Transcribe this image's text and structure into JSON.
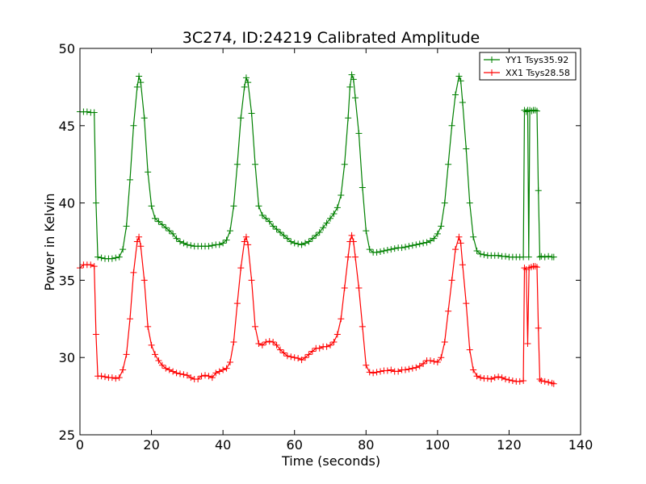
{
  "chart_data": {
    "type": "line",
    "title": "3C274, ID:24219 Calibrated Amplitude",
    "xlabel": "Time (seconds)",
    "ylabel": "Power in Kelvin",
    "xlim": [
      0,
      140
    ],
    "ylim": [
      25,
      50
    ],
    "xticks": [
      0,
      20,
      40,
      60,
      80,
      100,
      120,
      140
    ],
    "yticks": [
      25,
      30,
      35,
      40,
      45,
      50
    ],
    "xtick_labels": [
      "0",
      "20",
      "40",
      "60",
      "80",
      "100",
      "120",
      "140"
    ],
    "ytick_labels": [
      "25",
      "30",
      "35",
      "40",
      "45",
      "50"
    ],
    "grid": false,
    "legend_position": "top-right",
    "marker": "+",
    "series": [
      {
        "name": "YY1 Tsys35.92",
        "color": "#008000",
        "points": [
          [
            0,
            45.9
          ],
          [
            1,
            45.9
          ],
          [
            2,
            45.9
          ],
          [
            3,
            45.85
          ],
          [
            4,
            45.85
          ],
          [
            4.5,
            40.0
          ],
          [
            5,
            36.5
          ],
          [
            6,
            36.45
          ],
          [
            7,
            36.4
          ],
          [
            8,
            36.4
          ],
          [
            9,
            36.4
          ],
          [
            10,
            36.45
          ],
          [
            11,
            36.5
          ],
          [
            12,
            37.0
          ],
          [
            13,
            38.5
          ],
          [
            14,
            41.5
          ],
          [
            15,
            45.0
          ],
          [
            16,
            47.5
          ],
          [
            16.5,
            48.2
          ],
          [
            17,
            47.8
          ],
          [
            18,
            45.5
          ],
          [
            19,
            42.0
          ],
          [
            20,
            39.8
          ],
          [
            21,
            39.0
          ],
          [
            22,
            38.8
          ],
          [
            23,
            38.6
          ],
          [
            24,
            38.4
          ],
          [
            25,
            38.2
          ],
          [
            26,
            38.0
          ],
          [
            27,
            37.7
          ],
          [
            28,
            37.5
          ],
          [
            29,
            37.4
          ],
          [
            30,
            37.3
          ],
          [
            31,
            37.25
          ],
          [
            32,
            37.2
          ],
          [
            33,
            37.2
          ],
          [
            34,
            37.2
          ],
          [
            35,
            37.2
          ],
          [
            36,
            37.2
          ],
          [
            37,
            37.25
          ],
          [
            38,
            37.3
          ],
          [
            39,
            37.3
          ],
          [
            40,
            37.4
          ],
          [
            41,
            37.6
          ],
          [
            42,
            38.2
          ],
          [
            43,
            39.8
          ],
          [
            44,
            42.5
          ],
          [
            45,
            45.5
          ],
          [
            46,
            47.5
          ],
          [
            46.5,
            48.1
          ],
          [
            47,
            47.8
          ],
          [
            48,
            45.8
          ],
          [
            49,
            42.5
          ],
          [
            50,
            39.8
          ],
          [
            51,
            39.2
          ],
          [
            52,
            39.0
          ],
          [
            53,
            38.8
          ],
          [
            54,
            38.5
          ],
          [
            55,
            38.3
          ],
          [
            56,
            38.1
          ],
          [
            57,
            37.9
          ],
          [
            58,
            37.7
          ],
          [
            59,
            37.5
          ],
          [
            60,
            37.4
          ],
          [
            61,
            37.35
          ],
          [
            62,
            37.3
          ],
          [
            63,
            37.4
          ],
          [
            64,
            37.5
          ],
          [
            65,
            37.7
          ],
          [
            66,
            37.9
          ],
          [
            67,
            38.1
          ],
          [
            68,
            38.4
          ],
          [
            69,
            38.7
          ],
          [
            70,
            39.0
          ],
          [
            71,
            39.3
          ],
          [
            72,
            39.7
          ],
          [
            73,
            40.5
          ],
          [
            74,
            42.5
          ],
          [
            75,
            45.5
          ],
          [
            75.5,
            47.5
          ],
          [
            76,
            48.3
          ],
          [
            76.5,
            48.0
          ],
          [
            77,
            46.8
          ],
          [
            78,
            44.5
          ],
          [
            79,
            41.0
          ],
          [
            80,
            38.2
          ],
          [
            81,
            37.0
          ],
          [
            82,
            36.8
          ],
          [
            83,
            36.8
          ],
          [
            84,
            36.85
          ],
          [
            85,
            36.9
          ],
          [
            86,
            36.95
          ],
          [
            87,
            37.0
          ],
          [
            88,
            37.05
          ],
          [
            89,
            37.1
          ],
          [
            90,
            37.1
          ],
          [
            91,
            37.15
          ],
          [
            92,
            37.2
          ],
          [
            93,
            37.25
          ],
          [
            94,
            37.3
          ],
          [
            95,
            37.35
          ],
          [
            96,
            37.4
          ],
          [
            97,
            37.45
          ],
          [
            98,
            37.55
          ],
          [
            99,
            37.7
          ],
          [
            100,
            38.0
          ],
          [
            101,
            38.5
          ],
          [
            102,
            40.0
          ],
          [
            103,
            42.5
          ],
          [
            104,
            45.0
          ],
          [
            105,
            47.0
          ],
          [
            106,
            48.2
          ],
          [
            106.5,
            47.9
          ],
          [
            107,
            46.5
          ],
          [
            108,
            43.5
          ],
          [
            109,
            40.0
          ],
          [
            110,
            37.8
          ],
          [
            111,
            36.9
          ],
          [
            112,
            36.7
          ],
          [
            113,
            36.65
          ],
          [
            114,
            36.6
          ],
          [
            115,
            36.6
          ],
          [
            116,
            36.6
          ],
          [
            117,
            36.6
          ],
          [
            118,
            36.55
          ],
          [
            119,
            36.55
          ],
          [
            120,
            36.5
          ],
          [
            121,
            36.5
          ],
          [
            122,
            36.5
          ],
          [
            123,
            36.5
          ],
          [
            124,
            36.5
          ],
          [
            124.3,
            46.0
          ],
          [
            124.8,
            45.9
          ],
          [
            125.2,
            46.0
          ],
          [
            125.5,
            36.5
          ],
          [
            125.8,
            46.0
          ],
          [
            126.3,
            45.95
          ],
          [
            126.8,
            46.0
          ],
          [
            127.3,
            46.0
          ],
          [
            127.8,
            45.95
          ],
          [
            128.2,
            40.8
          ],
          [
            128.6,
            36.5
          ],
          [
            129,
            36.55
          ],
          [
            130,
            36.5
          ],
          [
            131,
            36.55
          ],
          [
            132,
            36.5
          ],
          [
            132.5,
            36.5
          ]
        ]
      },
      {
        "name": "XX1 Tsys28.58",
        "color": "#ff0000",
        "points": [
          [
            0,
            35.8
          ],
          [
            1,
            36.0
          ],
          [
            2,
            36.0
          ],
          [
            3,
            36.0
          ],
          [
            4,
            35.9
          ],
          [
            4.5,
            31.5
          ],
          [
            5,
            28.8
          ],
          [
            6,
            28.8
          ],
          [
            7,
            28.75
          ],
          [
            8,
            28.7
          ],
          [
            9,
            28.7
          ],
          [
            10,
            28.65
          ],
          [
            11,
            28.7
          ],
          [
            12,
            29.2
          ],
          [
            13,
            30.2
          ],
          [
            14,
            32.5
          ],
          [
            15,
            35.5
          ],
          [
            16,
            37.5
          ],
          [
            16.5,
            37.8
          ],
          [
            17,
            37.2
          ],
          [
            18,
            35.0
          ],
          [
            19,
            32.0
          ],
          [
            20,
            30.8
          ],
          [
            21,
            30.2
          ],
          [
            22,
            29.8
          ],
          [
            23,
            29.5
          ],
          [
            24,
            29.3
          ],
          [
            25,
            29.2
          ],
          [
            26,
            29.1
          ],
          [
            27,
            29.0
          ],
          [
            28,
            28.95
          ],
          [
            29,
            28.9
          ],
          [
            30,
            28.85
          ],
          [
            31,
            28.7
          ],
          [
            32,
            28.6
          ],
          [
            33,
            28.6
          ],
          [
            34,
            28.8
          ],
          [
            35,
            28.85
          ],
          [
            36,
            28.8
          ],
          [
            37,
            28.7
          ],
          [
            38,
            29.0
          ],
          [
            39,
            29.1
          ],
          [
            40,
            29.2
          ],
          [
            41,
            29.3
          ],
          [
            42,
            29.7
          ],
          [
            43,
            31.0
          ],
          [
            44,
            33.5
          ],
          [
            45,
            35.8
          ],
          [
            46,
            37.5
          ],
          [
            46.5,
            37.8
          ],
          [
            47,
            37.3
          ],
          [
            48,
            35.0
          ],
          [
            49,
            32.0
          ],
          [
            50,
            30.9
          ],
          [
            51,
            30.8
          ],
          [
            52,
            31.0
          ],
          [
            53,
            31.05
          ],
          [
            54,
            31.0
          ],
          [
            55,
            30.8
          ],
          [
            56,
            30.5
          ],
          [
            57,
            30.3
          ],
          [
            58,
            30.1
          ],
          [
            59,
            30.05
          ],
          [
            60,
            30.0
          ],
          [
            61,
            29.95
          ],
          [
            62,
            29.85
          ],
          [
            63,
            30.0
          ],
          [
            64,
            30.2
          ],
          [
            65,
            30.4
          ],
          [
            66,
            30.6
          ],
          [
            67,
            30.6
          ],
          [
            68,
            30.7
          ],
          [
            69,
            30.7
          ],
          [
            70,
            30.8
          ],
          [
            71,
            31.0
          ],
          [
            72,
            31.5
          ],
          [
            73,
            32.5
          ],
          [
            74,
            34.5
          ],
          [
            75,
            36.5
          ],
          [
            75.5,
            37.5
          ],
          [
            76,
            37.9
          ],
          [
            76.5,
            37.5
          ],
          [
            77,
            36.5
          ],
          [
            78,
            34.5
          ],
          [
            79,
            32.0
          ],
          [
            80,
            29.5
          ],
          [
            81,
            29.05
          ],
          [
            82,
            29.0
          ],
          [
            83,
            29.05
          ],
          [
            84,
            29.1
          ],
          [
            85,
            29.15
          ],
          [
            86,
            29.15
          ],
          [
            87,
            29.2
          ],
          [
            88,
            29.1
          ],
          [
            89,
            29.1
          ],
          [
            90,
            29.2
          ],
          [
            91,
            29.2
          ],
          [
            92,
            29.25
          ],
          [
            93,
            29.3
          ],
          [
            94,
            29.35
          ],
          [
            95,
            29.45
          ],
          [
            96,
            29.6
          ],
          [
            97,
            29.8
          ],
          [
            98,
            29.8
          ],
          [
            99,
            29.75
          ],
          [
            100,
            29.7
          ],
          [
            101,
            30.0
          ],
          [
            102,
            31.0
          ],
          [
            103,
            33.0
          ],
          [
            104,
            35.0
          ],
          [
            105,
            37.0
          ],
          [
            106,
            37.8
          ],
          [
            106.5,
            37.4
          ],
          [
            107,
            36.0
          ],
          [
            108,
            33.5
          ],
          [
            109,
            30.5
          ],
          [
            110,
            29.2
          ],
          [
            111,
            28.8
          ],
          [
            112,
            28.7
          ],
          [
            113,
            28.65
          ],
          [
            114,
            28.65
          ],
          [
            115,
            28.6
          ],
          [
            116,
            28.7
          ],
          [
            117,
            28.75
          ],
          [
            118,
            28.7
          ],
          [
            119,
            28.6
          ],
          [
            120,
            28.55
          ],
          [
            121,
            28.5
          ],
          [
            122,
            28.45
          ],
          [
            123,
            28.45
          ],
          [
            124,
            28.5
          ],
          [
            124.3,
            35.8
          ],
          [
            124.8,
            35.7
          ],
          [
            125.2,
            30.9
          ],
          [
            125.6,
            35.8
          ],
          [
            126.2,
            35.85
          ],
          [
            126.8,
            35.9
          ],
          [
            127.3,
            35.9
          ],
          [
            127.8,
            35.85
          ],
          [
            128.2,
            31.9
          ],
          [
            128.6,
            28.6
          ],
          [
            129,
            28.5
          ],
          [
            130,
            28.45
          ],
          [
            131,
            28.4
          ],
          [
            132,
            28.35
          ],
          [
            132.5,
            28.3
          ]
        ]
      }
    ]
  }
}
